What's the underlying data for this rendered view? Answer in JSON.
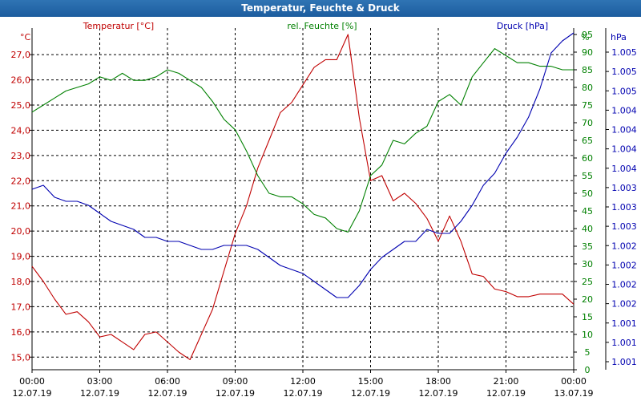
{
  "window": {
    "title": "Temperatur, Feuchte & Druck"
  },
  "colors": {
    "temperature": "#c00000",
    "humidity": "#008000",
    "pressure": "#0000b0",
    "grid": "#000000",
    "axis": "#000000"
  },
  "chart_data": {
    "type": "line",
    "title": "Temperatur, Feuchte & Druck",
    "x_ticks": [
      {
        "time": "00:00",
        "date": "12.07.19"
      },
      {
        "time": "03:00",
        "date": "12.07.19"
      },
      {
        "time": "06:00",
        "date": "12.07.19"
      },
      {
        "time": "09:00",
        "date": "12.07.19"
      },
      {
        "time": "12:00",
        "date": "12.07.19"
      },
      {
        "time": "15:00",
        "date": "12.07.19"
      },
      {
        "time": "18:00",
        "date": "12.07.19"
      },
      {
        "time": "21:00",
        "date": "12.07.19"
      },
      {
        "time": "00:00",
        "date": "13.07.19"
      }
    ],
    "x_range_hours": [
      0,
      24
    ],
    "axes": {
      "temperature": {
        "label": "Temperatur [°C]",
        "unit": "°C",
        "range": [
          14.5,
          28.5
        ],
        "ticks": [
          "15,0",
          "16,0",
          "17,0",
          "18,0",
          "19,0",
          "20,0",
          "21,0",
          "22,0",
          "23,0",
          "24,0",
          "25,0",
          "26,0",
          "27,0"
        ]
      },
      "humidity": {
        "label": "rel. Feuchte [%]",
        "unit": "%",
        "range": [
          0,
          100
        ],
        "ticks": [
          "0",
          "5",
          "10",
          "15",
          "20",
          "25",
          "30",
          "35",
          "40",
          "45",
          "50",
          "55",
          "60",
          "65",
          "70",
          "75",
          "80",
          "85",
          "90",
          "95"
        ]
      },
      "pressure": {
        "label": "Druck [hPa]",
        "unit": "hPa",
        "range": [
          1000.95,
          1005.35
        ],
        "ticks": [
          "1.001",
          "1.001",
          "1.001",
          "1.002",
          "1.002",
          "1.002",
          "1.002",
          "1.003",
          "1.003",
          "1.003",
          "1.004",
          "1.004",
          "1.004",
          "1.004",
          "1.005",
          "1.005",
          "1.005"
        ]
      }
    },
    "series": [
      {
        "name": "Temperatur",
        "axis": "temperature",
        "x": [
          0,
          0.5,
          1,
          1.5,
          2,
          2.5,
          3,
          3.5,
          4,
          4.5,
          5,
          5.5,
          6,
          6.5,
          7,
          7.5,
          8,
          8.5,
          9,
          9.5,
          10,
          10.5,
          11,
          11.5,
          12,
          12.5,
          13,
          13.5,
          14,
          14.5,
          15,
          15.5,
          16,
          16.5,
          17,
          17.5,
          18,
          18.5,
          19,
          19.5,
          20,
          20.5,
          21,
          21.5,
          22,
          22.5,
          23,
          23.5,
          24
        ],
        "values": [
          18.6,
          18.0,
          17.3,
          16.7,
          16.8,
          16.4,
          15.8,
          15.9,
          15.6,
          15.3,
          15.9,
          16.0,
          15.6,
          15.2,
          14.9,
          15.9,
          16.9,
          18.4,
          19.9,
          21.0,
          22.5,
          23.6,
          24.7,
          25.1,
          25.8,
          26.5,
          26.8,
          26.8,
          27.8,
          24.5,
          22.0,
          22.2,
          21.2,
          21.5,
          21.1,
          20.5,
          19.6,
          20.6,
          19.6,
          18.3,
          18.2,
          17.7,
          17.6,
          17.4,
          17.4,
          17.5,
          17.5,
          17.5,
          17.1
        ]
      },
      {
        "name": "rel. Feuchte",
        "axis": "humidity",
        "x": [
          0,
          0.5,
          1,
          1.5,
          2,
          2.5,
          3,
          3.5,
          4,
          4.5,
          5,
          5.5,
          6,
          6.5,
          7,
          7.5,
          8,
          8.5,
          9,
          9.5,
          10,
          10.5,
          11,
          11.5,
          12,
          12.5,
          13,
          13.5,
          14,
          14.5,
          15,
          15.5,
          16,
          16.5,
          17,
          17.5,
          18,
          18.5,
          19,
          19.5,
          20,
          20.5,
          21,
          21.5,
          22,
          22.5,
          23,
          23.5,
          24
        ],
        "values": [
          73,
          75,
          77,
          79,
          80,
          81,
          83,
          82,
          84,
          82,
          82,
          83,
          85,
          84,
          82,
          80,
          76,
          71,
          68,
          62,
          55,
          50,
          49,
          49,
          47,
          44,
          43,
          40,
          39,
          45,
          55,
          58,
          65,
          64,
          67,
          69,
          76,
          78,
          75,
          83,
          87,
          91,
          89,
          87,
          87,
          86,
          86,
          85,
          85
        ]
      },
      {
        "name": "Druck",
        "axis": "pressure",
        "x": [
          0,
          0.5,
          1,
          1.5,
          2,
          2.5,
          3,
          3.5,
          4,
          4.5,
          5,
          5.5,
          6,
          6.5,
          7,
          7.5,
          8,
          8.5,
          9,
          9.5,
          10,
          10.5,
          11,
          11.5,
          12,
          12.5,
          13,
          13.5,
          14,
          14.5,
          15,
          15.5,
          16,
          16.5,
          17,
          17.5,
          18,
          18.5,
          19,
          19.5,
          20,
          20.5,
          21,
          21.5,
          22,
          22.5,
          23,
          23.5,
          24
        ],
        "values": [
          1003.2,
          1003.25,
          1003.1,
          1003.05,
          1003.05,
          1003.0,
          1002.9,
          1002.8,
          1002.75,
          1002.7,
          1002.6,
          1002.6,
          1002.55,
          1002.55,
          1002.5,
          1002.45,
          1002.45,
          1002.5,
          1002.5,
          1002.5,
          1002.45,
          1002.35,
          1002.25,
          1002.2,
          1002.15,
          1002.05,
          1001.95,
          1001.85,
          1001.85,
          1002.0,
          1002.2,
          1002.35,
          1002.45,
          1002.55,
          1002.55,
          1002.7,
          1002.65,
          1002.65,
          1002.8,
          1003.0,
          1003.25,
          1003.4,
          1003.65,
          1003.85,
          1004.1,
          1004.45,
          1004.9,
          1005.05,
          1005.15
        ]
      }
    ]
  }
}
